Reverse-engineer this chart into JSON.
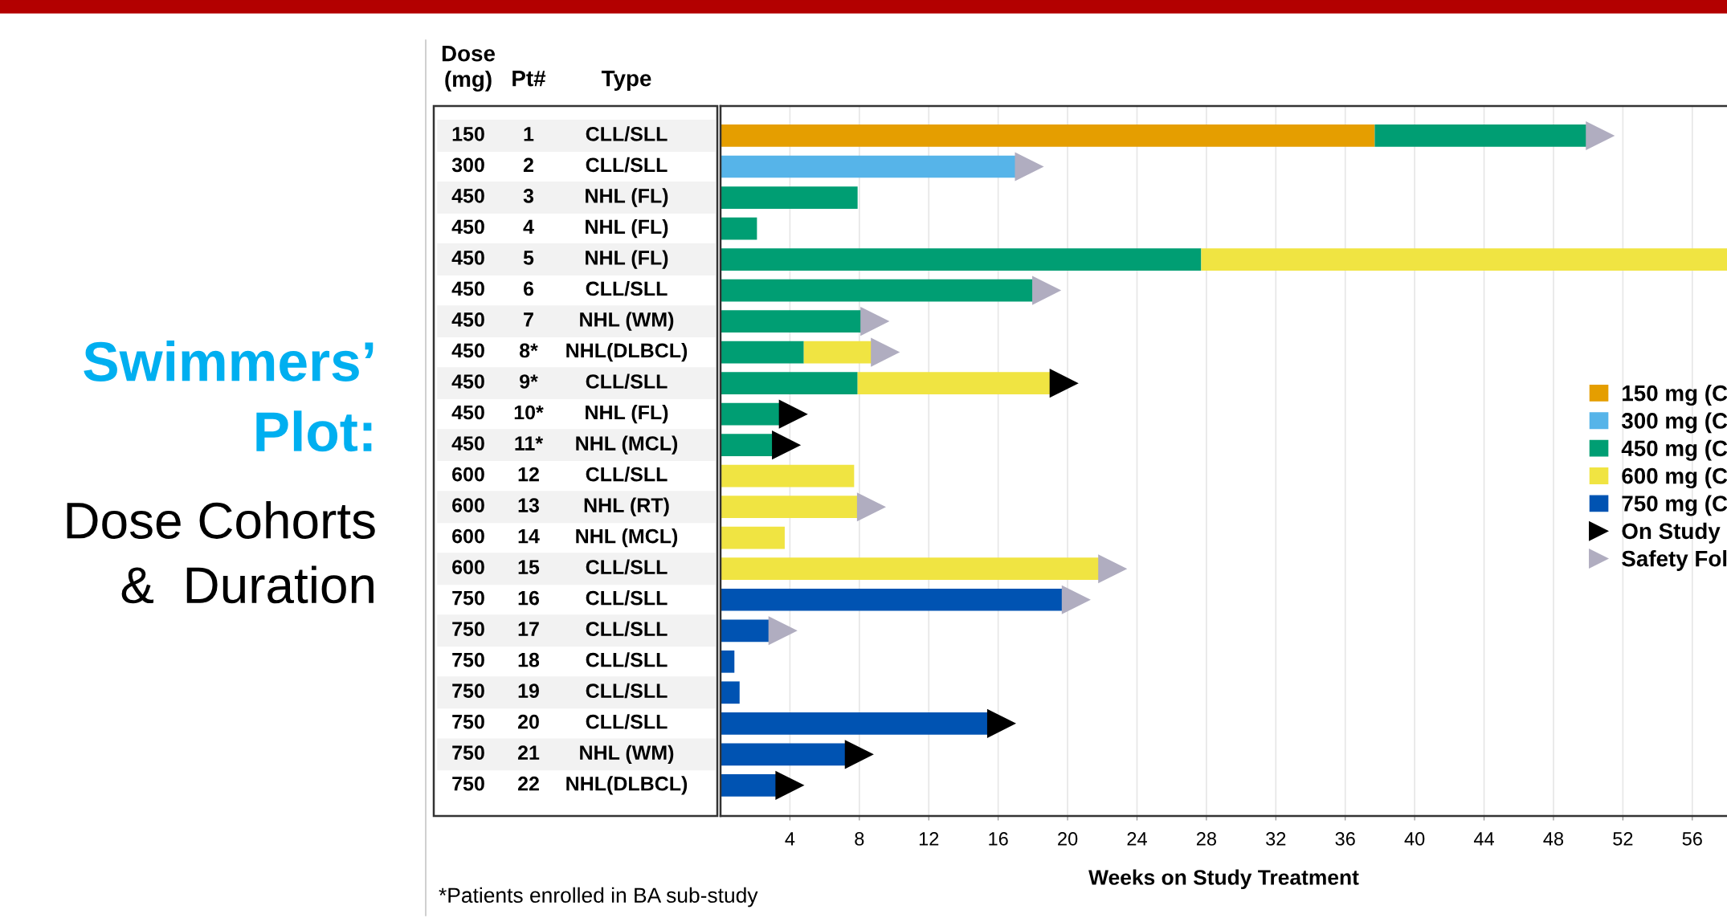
{
  "chart_data": {
    "type": "bar",
    "orientation": "horizontal",
    "stacked": true,
    "title": "Swimmers’\nPlot:",
    "subtitle": "Dose Cohorts\n&  Duration",
    "xlabel": "Weeks on Study Treatment",
    "categories": [
      "150\t1\tCLL/SLL",
      "300\t2\tCLL/SLL",
      "450\t3\tNHL (FL)",
      "450\t4\tNHL (FL)",
      "450\t5\tNHL (FL)",
      "450\t6\tCLL/SLL",
      "450\t7\tNHL (WM)",
      "450\t8*\tNHL(DLBCL)",
      "450\t9*\tCLL/SLL",
      "450\t10*\tNHL (FL)",
      "450\t11*\tNHL (MCL)",
      "600\t12\tCLL/SLL",
      "600\t13\tNHL (RT)",
      "600\t14\tNHL (MCL)",
      "600\t15\tCLL/SLL",
      "750\t16\tCLL/SLL",
      "750\t17\tCLL/SLL",
      "750\t18\tCLL/SLL",
      "750\t19\tCLL/SLL",
      "750\t20\tCLL/SLL",
      "750\t21\tNHL (WM)",
      "750\t22\tNHL(DLBCL)"
    ],
    "series": [
      {
        "name": "150 mg (C",
        "color": "#e59e00",
        "values": [
          37.7,
          null,
          null,
          null,
          null,
          null,
          null,
          null,
          null,
          null,
          null,
          null,
          null,
          null,
          null,
          null,
          null,
          null,
          null,
          null,
          null,
          null
        ]
      },
      {
        "name": "300 mg (C",
        "color": "#56b4e9",
        "values": [
          null,
          17.0,
          null,
          null,
          null,
          null,
          null,
          null,
          null,
          null,
          null,
          null,
          null,
          null,
          null,
          null,
          null,
          null,
          null,
          null,
          null,
          null
        ]
      },
      {
        "name": "450 mg (C",
        "color": "#009e73",
        "values": [
          12.2,
          null,
          7.9,
          2.1,
          27.7,
          18.0,
          8.1,
          4.8,
          7.9,
          3.4,
          3.0,
          null,
          null,
          null,
          null,
          null,
          null,
          null,
          null,
          null,
          null,
          null
        ]
      },
      {
        "name": "600 mg (C",
        "color": "#f0e442",
        "values": [
          null,
          null,
          null,
          null,
          30.3,
          null,
          null,
          3.9,
          11.1,
          null,
          null,
          7.7,
          7.9,
          3.7,
          21.8,
          null,
          null,
          null,
          null,
          null,
          null,
          null
        ]
      },
      {
        "name": "750 mg (C",
        "color": "#0053b2",
        "values": [
          null,
          null,
          null,
          null,
          null,
          null,
          null,
          null,
          null,
          null,
          null,
          null,
          null,
          null,
          null,
          19.7,
          2.8,
          0.8,
          1.1,
          15.4,
          7.2,
          3.2
        ]
      },
      {
        "name": "On Study",
        "type": "scatter",
        "marker": "triangle",
        "color": "#000000",
        "values": [
          null,
          null,
          null,
          null,
          null,
          null,
          null,
          null,
          19.8,
          4.2,
          3.8,
          null,
          null,
          null,
          null,
          null,
          null,
          null,
          null,
          16.2,
          8.0,
          4.0
        ]
      },
      {
        "name": "Safety Fol",
        "type": "scatter",
        "marker": "triangle",
        "color": "#b0adc0",
        "values": [
          50.7,
          17.8,
          null,
          null,
          null,
          18.8,
          8.9,
          9.5,
          null,
          null,
          null,
          null,
          8.7,
          null,
          22.6,
          20.5,
          3.6,
          null,
          null,
          null,
          null,
          null
        ]
      }
    ],
    "xlim": [
      0,
      58
    ],
    "xticks": [
      4,
      8,
      12,
      16,
      20,
      24,
      28,
      32,
      36,
      40,
      44,
      48,
      52,
      56
    ],
    "grid": "x",
    "legend": "right",
    "tick_labels": "x",
    "annotations": [
      "Dose\n(mg)",
      "Pt#",
      "Type",
      "*Patients enrolled in BA sub-study"
    ]
  }
}
